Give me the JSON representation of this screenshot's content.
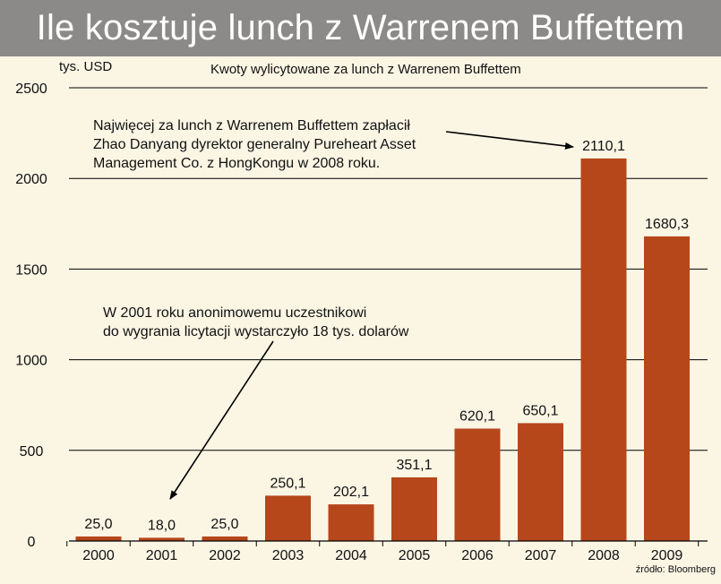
{
  "title": "Ile kosztuje lunch z Warrenem Buffettem",
  "subtitle": "Kwoty wylicytowane za lunch z Warrenem Buffettem",
  "unit_label": "tys. USD",
  "source": "źródło: Bloomberg",
  "annotations": {
    "top": "Najwięcej za lunch z Warrenem Buffettem zapłacił\nZhao Danyang dyrektor generalny Pureheart Asset\nManagement Co. z HongKongu w 2008 roku.",
    "bottom": "W 2001 roku anonimowemu uczestnikowi\ndo wygrania licytacji wystarczyło 18 tys. dolarów"
  },
  "colors": {
    "bar": "#b5471a",
    "background": "#fbf5e4",
    "title_bar": "#8c8a88",
    "grid": "#000000"
  },
  "chart_data": {
    "type": "bar",
    "categories": [
      "2000",
      "2001",
      "2002",
      "2003",
      "2004",
      "2005",
      "2006",
      "2007",
      "2008",
      "2009"
    ],
    "values": [
      25.0,
      18.0,
      25.0,
      250.1,
      202.1,
      351.1,
      620.1,
      650.1,
      2110.1,
      1680.3
    ],
    "value_labels": [
      "25,0",
      "18,0",
      "25,0",
      "250,1",
      "202,1",
      "351,1",
      "620,1",
      "650,1",
      "2110,1",
      "1680,3"
    ],
    "title": "Kwoty wylicytowane za lunch z Warrenem Buffettem",
    "xlabel": "",
    "ylabel": "tys. USD",
    "ylim": [
      0,
      2500
    ],
    "yticks": [
      0,
      500,
      1000,
      1500,
      2000,
      2500
    ],
    "grid": true
  }
}
